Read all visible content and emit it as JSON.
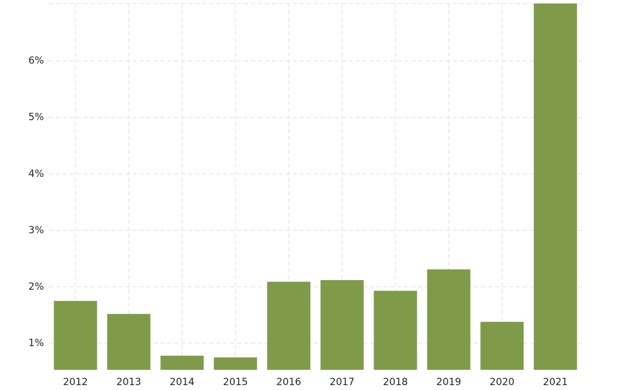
{
  "chart_data": {
    "type": "bar",
    "categories": [
      "2012",
      "2013",
      "2014",
      "2015",
      "2016",
      "2017",
      "2018",
      "2019",
      "2020",
      "2021"
    ],
    "values": [
      1.75,
      1.52,
      0.78,
      0.75,
      2.09,
      2.12,
      1.93,
      2.31,
      1.38,
      7.02
    ],
    "color": "#7f9b4a",
    "ylim": [
      0.53,
      7.02
    ],
    "yticks": [
      {
        "value": 1,
        "label": "1%"
      },
      {
        "value": 2,
        "label": "2%"
      },
      {
        "value": 3,
        "label": "3%"
      },
      {
        "value": 4,
        "label": "4%"
      },
      {
        "value": 5,
        "label": "5%"
      },
      {
        "value": 6,
        "label": "6%"
      }
    ],
    "grid": true
  }
}
